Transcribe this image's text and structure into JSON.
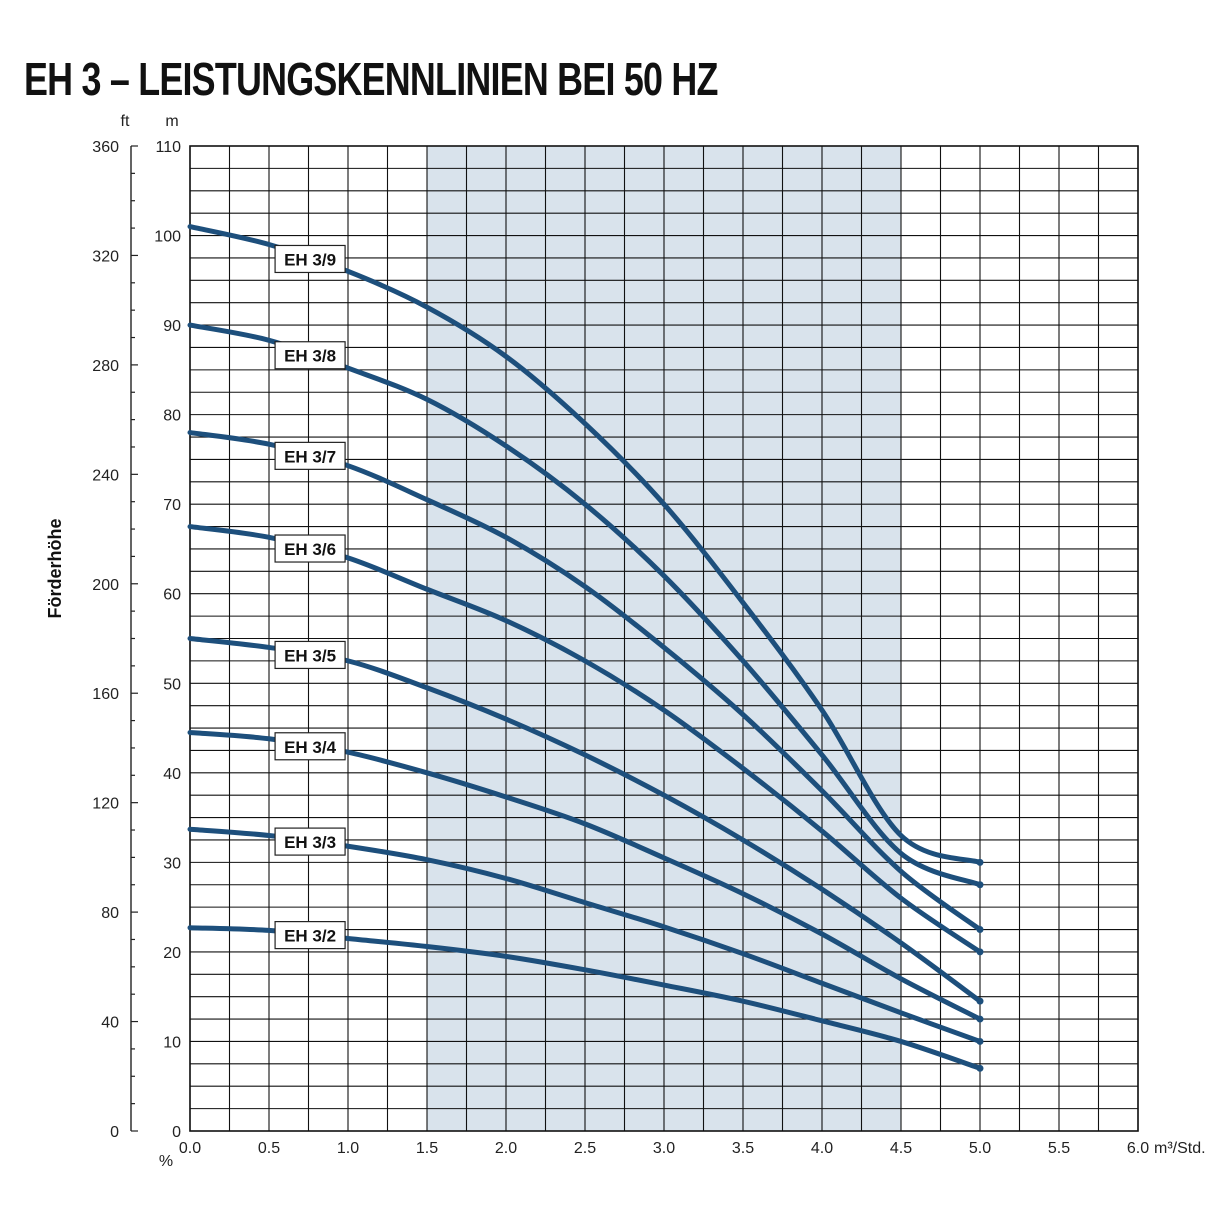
{
  "title": "EH 3 – LEISTUNGSKENNLINIEN BEI 50 HZ",
  "chart_data": {
    "type": "line",
    "title": "EH 3 – LEISTUNGSKENNLINIEN BEI 50 HZ",
    "ylabel": "Förderhöhe",
    "left_axis_unit": "ft",
    "right_axis_unit": "m",
    "x_unit_label": "m³/Std.",
    "x_percent_label": "%",
    "xlim": [
      0,
      6
    ],
    "ylim": [
      0,
      110
    ],
    "ft_lim": [
      0,
      360
    ],
    "x_ticks": [
      "0.0",
      "0.5",
      "1.0",
      "1.5",
      "2.0",
      "2.5",
      "3.0",
      "3.5",
      "4.0",
      "4.5",
      "5.0",
      "5.5",
      "6.0"
    ],
    "m_ticks": [
      "0",
      "10",
      "20",
      "30",
      "40",
      "50",
      "60",
      "70",
      "80",
      "90",
      "100",
      "110"
    ],
    "ft_ticks": [
      "0",
      "40",
      "80",
      "120",
      "160",
      "200",
      "240",
      "280",
      "320",
      "360"
    ],
    "grid": true,
    "shaded_range": [
      1.5,
      4.5
    ],
    "colors": {
      "curve": "#1d4f7c",
      "shade": "#d9e3ec",
      "grid": "#111111"
    },
    "series": [
      {
        "name": "EH 3/9",
        "x": [
          0,
          0.5,
          1,
          1.5,
          2,
          2.5,
          3,
          3.5,
          4,
          4.5,
          5
        ],
        "values": [
          101,
          99,
          96,
          92,
          86.5,
          79,
          70,
          59,
          47,
          33,
          30
        ]
      },
      {
        "name": "EH 3/8",
        "x": [
          0,
          0.5,
          1,
          1.5,
          2,
          2.5,
          3,
          3.5,
          4,
          4.5,
          5
        ],
        "values": [
          90,
          88.3,
          85.2,
          81.7,
          76.5,
          70,
          62,
          52.5,
          42,
          31,
          27.5
        ]
      },
      {
        "name": "EH 3/7",
        "x": [
          0,
          0.5,
          1,
          1.5,
          2,
          2.5,
          3,
          3.5,
          4,
          4.5,
          5
        ],
        "values": [
          78,
          76.7,
          74.3,
          70.5,
          66.3,
          60.8,
          54,
          46.5,
          38,
          29,
          22.5
        ]
      },
      {
        "name": "EH 3/6",
        "x": [
          0,
          0.5,
          1,
          1.5,
          2,
          2.5,
          3,
          3.5,
          4,
          4.5,
          5
        ],
        "values": [
          67.5,
          66.3,
          64,
          60.5,
          57,
          52.5,
          47,
          40.5,
          33.5,
          26,
          20
        ]
      },
      {
        "name": "EH 3/5",
        "x": [
          0,
          0.5,
          1,
          1.5,
          2,
          2.5,
          3,
          3.5,
          4,
          4.5,
          5
        ],
        "values": [
          55,
          54,
          52.5,
          49.5,
          46,
          42,
          37.5,
          32.5,
          27,
          21,
          14.5
        ]
      },
      {
        "name": "EH 3/4",
        "x": [
          0,
          0.5,
          1,
          1.5,
          2,
          2.5,
          3,
          3.5,
          4,
          4.5,
          5
        ],
        "values": [
          44.5,
          43.8,
          42.3,
          40,
          37.3,
          34.3,
          30.5,
          26.5,
          22,
          17,
          12.5
        ]
      },
      {
        "name": "EH 3/3",
        "x": [
          0,
          0.5,
          1,
          1.5,
          2,
          2.5,
          3,
          3.5,
          4,
          4.5,
          5
        ],
        "values": [
          33.7,
          33,
          31.8,
          30.3,
          28.2,
          25.5,
          22.8,
          19.8,
          16.5,
          13.2,
          10
        ]
      },
      {
        "name": "EH 3/2",
        "x": [
          0,
          0.5,
          1,
          1.5,
          2,
          2.5,
          3,
          3.5,
          4,
          4.5,
          5
        ],
        "values": [
          22.7,
          22.4,
          21.5,
          20.6,
          19.5,
          18,
          16.3,
          14.5,
          12.3,
          10,
          7
        ]
      }
    ]
  }
}
